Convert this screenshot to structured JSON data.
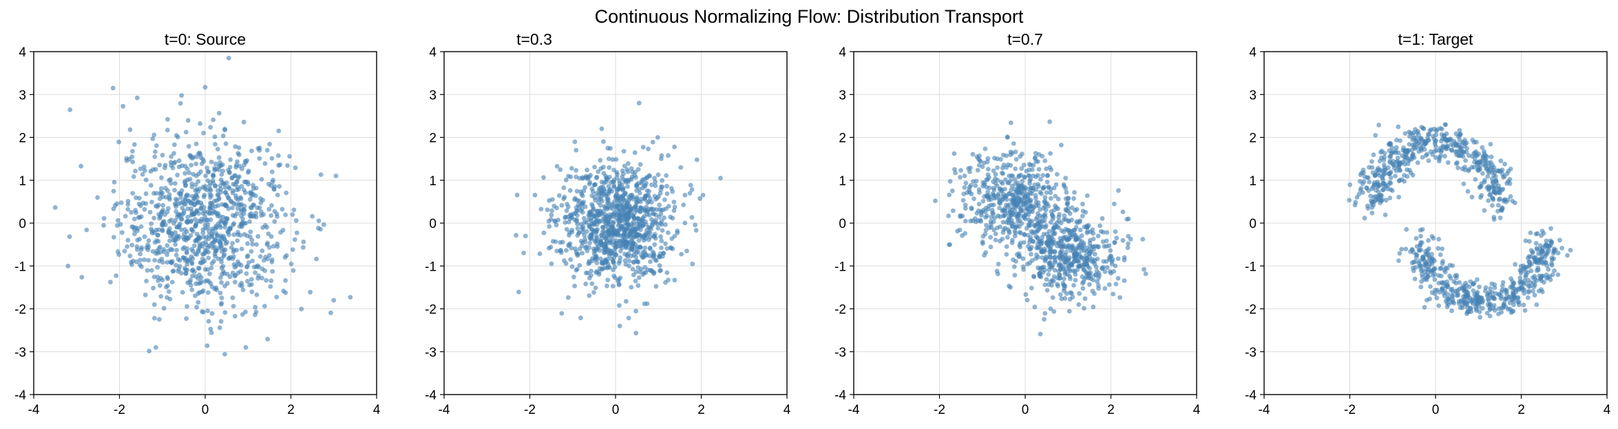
{
  "figure": {
    "suptitle": "Continuous Normalizing Flow: Distribution Transport",
    "point_color": "#4682b4",
    "point_alpha": 0.6,
    "grid_color": "#dcdcdc"
  },
  "chart_data": [
    {
      "type": "scatter",
      "title": "t=0: Source",
      "xlim": [
        -4,
        4
      ],
      "ylim": [
        -4,
        4
      ],
      "xticks": [
        -4,
        -2,
        0,
        2,
        4
      ],
      "yticks": [
        -4,
        -3,
        -2,
        -1,
        0,
        1,
        2,
        3,
        4
      ],
      "grid": true,
      "shape": "gaussian",
      "n_points": 1000,
      "center": [
        0,
        0
      ],
      "std": 1.0,
      "notable_points": [
        [
          0.55,
          3.85
        ],
        [
          -2.15,
          3.15
        ],
        [
          3.05,
          1.1
        ],
        [
          -3.2,
          -1.0
        ],
        [
          -1.15,
          -2.9
        ],
        [
          0.95,
          -2.9
        ]
      ]
    },
    {
      "type": "scatter",
      "title": "t=0.3",
      "xlim": [
        -4,
        4
      ],
      "ylim": [
        -4,
        4
      ],
      "xticks": [
        -4,
        -2,
        0,
        2,
        4
      ],
      "yticks": [
        -4,
        -3,
        -2,
        -1,
        0,
        1,
        2,
        3,
        4
      ],
      "grid": true,
      "shape": "gaussian",
      "n_points": 1000,
      "center": [
        0,
        0
      ],
      "std": 0.7,
      "notable_points": [
        [
          0.55,
          2.8
        ],
        [
          0.1,
          -2.4
        ],
        [
          -2.1,
          -0.3
        ],
        [
          2.45,
          1.05
        ]
      ]
    },
    {
      "type": "scatter",
      "title": "t=0.7",
      "xlim": [
        -4,
        4
      ],
      "ylim": [
        -4,
        4
      ],
      "xticks": [
        -4,
        -2,
        0,
        2,
        4
      ],
      "yticks": [
        -4,
        -3,
        -2,
        -1,
        0,
        1,
        2,
        3,
        4
      ],
      "grid": true,
      "shape": "two-lobes",
      "n_points": 1000,
      "lobes": [
        [
          -0.3,
          0.5
        ],
        [
          1.0,
          -0.7
        ]
      ],
      "std": 0.6
    },
    {
      "type": "scatter",
      "title": "t=1: Target",
      "xlim": [
        -4,
        4
      ],
      "ylim": [
        -4,
        4
      ],
      "xticks": [
        -4,
        -2,
        0,
        2,
        4
      ],
      "yticks": [
        -4,
        -3,
        -2,
        -1,
        0,
        1,
        2,
        3,
        4
      ],
      "grid": true,
      "shape": "two-moons",
      "n_points": 1000,
      "moons": [
        {
          "center": [
            0,
            0.4
          ],
          "radius": 1.45,
          "arc_deg": [
            0,
            180
          ]
        },
        {
          "center": [
            1.1,
            -0.4
          ],
          "radius": 1.45,
          "arc_deg": [
            180,
            360
          ]
        }
      ],
      "noise": 0.22
    }
  ]
}
